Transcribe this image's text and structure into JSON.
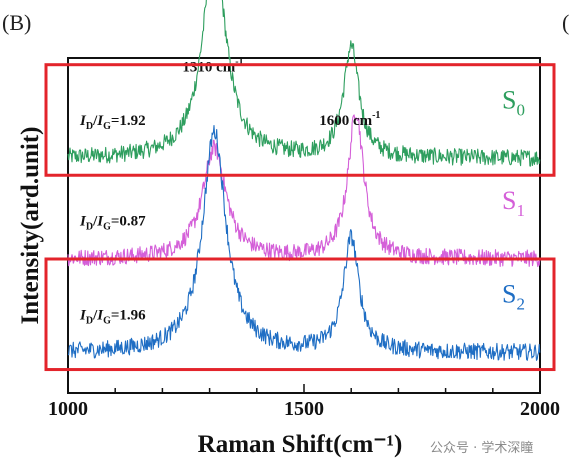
{
  "panel_label": "(B)",
  "panel_label_next": "(",
  "watermark": "公众号 · 学术深瞳",
  "chart_data": {
    "type": "line",
    "xlabel": "Raman Shift(cm⁻¹)",
    "ylabel": "Intensity(ard.unit)",
    "xlim": [
      1000,
      2000
    ],
    "x_ticks": [
      1000,
      1500,
      2000
    ],
    "grid": false,
    "peak_labels": [
      {
        "text": "1310 cm",
        "sup": "-1",
        "x": 1310
      },
      {
        "text": "1600 cm",
        "sup": "-1",
        "x": 1600
      }
    ],
    "series": [
      {
        "name": "S0",
        "label_main": "S",
        "label_sub": "0",
        "color": "#2e9e5e",
        "ratio": "=1.92",
        "id_ig": 1.92,
        "baseline": 0.7,
        "d_peak": {
          "x": 1310,
          "height": 0.62
        },
        "g_peak": {
          "x": 1600,
          "height": 0.33
        },
        "highlighted": true
      },
      {
        "name": "S1",
        "label_main": "S",
        "label_sub": "1",
        "color": "#d45fd8",
        "ratio": "=0.87",
        "id_ig": 0.87,
        "baseline": 0.4,
        "d_peak": {
          "x": 1310,
          "height": 0.33
        },
        "g_peak": {
          "x": 1610,
          "height": 0.44
        },
        "highlighted": false
      },
      {
        "name": "S2",
        "label_main": "S",
        "label_sub": "2",
        "color": "#1f6ec4",
        "ratio": "=1.96",
        "id_ig": 1.96,
        "baseline": 0.12,
        "d_peak": {
          "x": 1310,
          "height": 0.66
        },
        "g_peak": {
          "x": 1600,
          "height": 0.34
        },
        "highlighted": true
      }
    ]
  }
}
